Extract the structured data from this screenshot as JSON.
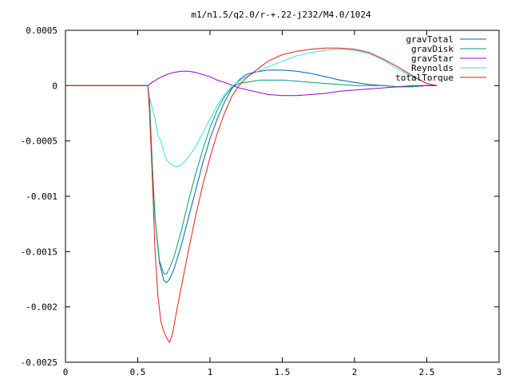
{
  "chart_data": {
    "type": "line",
    "title": "m1/n1.5/q2.0/r-+.22-j232/M4.0/1024",
    "xlabel": "",
    "ylabel": "",
    "xlim": [
      0,
      3
    ],
    "ylim": [
      -0.0025,
      0.0005
    ],
    "xticks": [
      {
        "v": 0,
        "label": "0"
      },
      {
        "v": 0.5,
        "label": "0.5"
      },
      {
        "v": 1,
        "label": "1"
      },
      {
        "v": 1.5,
        "label": "1.5"
      },
      {
        "v": 2,
        "label": "2"
      },
      {
        "v": 2.5,
        "label": "2.5"
      },
      {
        "v": 3,
        "label": "3"
      }
    ],
    "yticks": [
      {
        "v": 0.0005,
        "label": "0.0005"
      },
      {
        "v": 0,
        "label": "0"
      },
      {
        "v": -0.0005,
        "label": "-0.0005"
      },
      {
        "v": -0.001,
        "label": "-0.001"
      },
      {
        "v": -0.0015,
        "label": "-0.0015"
      },
      {
        "v": -0.002,
        "label": "-0.002"
      },
      {
        "v": -0.0025,
        "label": "-0.0025"
      }
    ],
    "grid": false,
    "legend": "top-right",
    "series": [
      {
        "name": "gravTotal",
        "color": "#0060ad",
        "x": [
          0,
          0.57,
          0.58,
          0.6,
          0.62,
          0.65,
          0.68,
          0.7,
          0.72,
          0.75,
          0.8,
          0.85,
          0.9,
          0.95,
          1.0,
          1.05,
          1.1,
          1.15,
          1.2,
          1.25,
          1.3,
          1.35,
          1.4,
          1.45,
          1.5,
          1.6,
          1.7,
          1.8,
          1.9,
          2.0,
          2.1,
          2.2,
          2.3,
          2.4,
          2.5,
          2.57
        ],
        "y": [
          0,
          0,
          -0.0001,
          -0.0007,
          -0.0012,
          -0.0016,
          -0.00176,
          -0.00178,
          -0.00175,
          -0.00166,
          -0.00145,
          -0.0012,
          -0.00095,
          -0.0007,
          -0.00048,
          -0.0003,
          -0.00015,
          -3e-05,
          5e-05,
          0.0001,
          0.00012,
          0.00013,
          0.00014,
          0.00014,
          0.00014,
          0.00013,
          0.00011,
          8e-05,
          5e-05,
          3e-05,
          1e-05,
          0.0,
          -1e-05,
          -1e-05,
          0.0,
          0.0
        ]
      },
      {
        "name": "gravDisk",
        "color": "#009e73",
        "x": [
          0,
          0.57,
          0.58,
          0.6,
          0.62,
          0.65,
          0.68,
          0.7,
          0.72,
          0.75,
          0.8,
          0.85,
          0.9,
          0.95,
          1.0,
          1.05,
          1.1,
          1.15,
          1.2,
          1.25,
          1.3,
          1.35,
          1.4,
          1.45,
          1.5,
          1.6,
          1.7,
          1.8,
          1.9,
          2.0,
          2.1,
          2.2,
          2.3,
          2.4,
          2.5,
          2.57
        ],
        "y": [
          0,
          0,
          -0.0001,
          -0.0007,
          -0.0012,
          -0.00158,
          -0.0017,
          -0.0017,
          -0.00165,
          -0.00155,
          -0.00132,
          -0.00105,
          -0.0008,
          -0.00058,
          -0.00038,
          -0.00022,
          -0.0001,
          -2e-05,
          2e-05,
          3e-05,
          4e-05,
          5e-05,
          5e-05,
          5e-05,
          5e-05,
          4e-05,
          3e-05,
          2e-05,
          1e-05,
          0.0,
          0.0,
          0.0,
          -1e-05,
          -1e-05,
          0.0,
          0.0
        ]
      },
      {
        "name": "gravStar",
        "color": "#9400d3",
        "x": [
          0,
          0.57,
          0.6,
          0.65,
          0.7,
          0.75,
          0.8,
          0.85,
          0.9,
          0.95,
          1.0,
          1.05,
          1.1,
          1.2,
          1.3,
          1.4,
          1.5,
          1.6,
          1.7,
          1.8,
          1.9,
          2.0,
          2.1,
          2.2,
          2.3,
          2.4,
          2.5,
          2.57
        ],
        "y": [
          0,
          0,
          3e-05,
          7e-05,
          0.0001,
          0.00012,
          0.00013,
          0.00013,
          0.00012,
          0.0001,
          8e-05,
          5e-05,
          3e-05,
          -2e-05,
          -5e-05,
          -8e-05,
          -9e-05,
          -9e-05,
          -8e-05,
          -7e-05,
          -5e-05,
          -4e-05,
          -3e-05,
          -2e-05,
          -1e-05,
          0.0,
          0.0,
          0.0
        ]
      },
      {
        "name": "Reynolds",
        "color": "#33e0e0",
        "x": [
          0,
          0.57,
          0.58,
          0.6,
          0.62,
          0.64,
          0.66,
          0.68,
          0.7,
          0.72,
          0.74,
          0.76,
          0.78,
          0.8,
          0.85,
          0.9,
          0.95,
          1.0,
          1.05,
          1.1,
          1.15,
          1.2,
          1.25,
          1.3,
          1.4,
          1.5,
          1.6,
          1.7,
          1.8,
          1.9,
          2.0,
          2.1,
          2.2,
          2.3,
          2.4,
          2.5,
          2.57
        ],
        "y": [
          0,
          0,
          -0.0001,
          -0.0002,
          -0.0003,
          -0.00045,
          -0.0005,
          -0.0006,
          -0.00067,
          -0.0007,
          -0.00072,
          -0.00073,
          -0.00073,
          -0.00072,
          -0.00065,
          -0.00055,
          -0.00043,
          -0.0003,
          -0.00018,
          -8e-05,
          -1e-05,
          4e-05,
          8e-05,
          0.00011,
          0.00017,
          0.00022,
          0.00027,
          0.0003,
          0.00032,
          0.00033,
          0.00032,
          0.00029,
          0.00023,
          0.00015,
          8e-05,
          2e-05,
          0.0
        ]
      },
      {
        "name": "totalTorque",
        "color": "#e51e10",
        "x": [
          0,
          0.57,
          0.58,
          0.6,
          0.62,
          0.64,
          0.66,
          0.68,
          0.7,
          0.72,
          0.74,
          0.76,
          0.8,
          0.85,
          0.9,
          0.95,
          1.0,
          1.05,
          1.1,
          1.15,
          1.2,
          1.25,
          1.3,
          1.35,
          1.4,
          1.5,
          1.6,
          1.7,
          1.8,
          1.9,
          2.0,
          2.1,
          2.2,
          2.3,
          2.4,
          2.5,
          2.57
        ],
        "y": [
          0,
          0,
          -0.0002,
          -0.0008,
          -0.0015,
          -0.0019,
          -0.00213,
          -0.00222,
          -0.00228,
          -0.00232,
          -0.00225,
          -0.0021,
          -0.00183,
          -0.0015,
          -0.00118,
          -0.0009,
          -0.00065,
          -0.00043,
          -0.00025,
          -0.0001,
          0.0,
          7e-05,
          0.00012,
          0.00017,
          0.00022,
          0.00028,
          0.00031,
          0.00033,
          0.00034,
          0.00034,
          0.00033,
          0.0003,
          0.00024,
          0.00017,
          9e-05,
          2e-05,
          0.0
        ]
      }
    ]
  }
}
